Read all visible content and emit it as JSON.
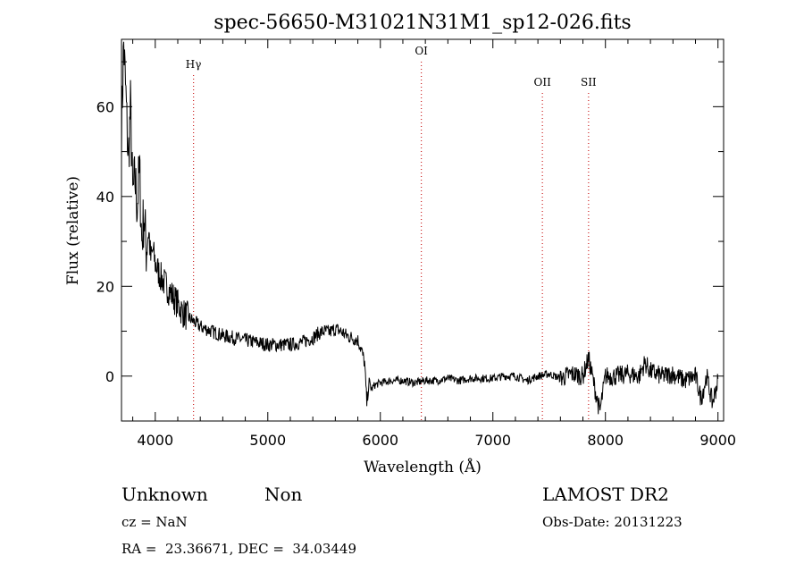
{
  "chart_data": {
    "type": "line",
    "title": "spec-56650-M31021N31M1_sp12-026.fits",
    "xlabel": "Wavelength (Å)",
    "ylabel": "Flux (relative)",
    "xlim": [
      3700,
      9050
    ],
    "ylim": [
      -10,
      75
    ],
    "xticks": [
      4000,
      5000,
      6000,
      7000,
      8000,
      9000
    ],
    "yticks": [
      0,
      20,
      40,
      60
    ],
    "grid": false,
    "series": [
      {
        "x": [
          3700,
          3720,
          3740,
          3760,
          3780,
          3800,
          3820,
          3840,
          3860,
          3880,
          3900,
          3920,
          3940,
          3960,
          3980,
          4000,
          4050,
          4100,
          4150,
          4200,
          4250,
          4300,
          4350,
          4400,
          4450,
          4500,
          4600,
          4700,
          4800,
          4900,
          5000,
          5100,
          5200,
          5300,
          5400,
          5450,
          5500,
          5550,
          5600,
          5650,
          5700,
          5750,
          5800,
          5830,
          5860,
          5880,
          5900,
          5920,
          5950,
          6000,
          6100,
          6200,
          6300,
          6400,
          6500,
          6600,
          6700,
          6800,
          6900,
          7000,
          7100,
          7200,
          7300,
          7400,
          7500,
          7600,
          7700,
          7800,
          7850,
          7900,
          7950,
          8000,
          8100,
          8200,
          8300,
          8350,
          8400,
          8500,
          8600,
          8700,
          8800,
          8850,
          8900,
          8950,
          9000
        ],
        "y": [
          55,
          74,
          62,
          48,
          60,
          40,
          44,
          38,
          46,
          30,
          36,
          28,
          33,
          26,
          28,
          25,
          22,
          20,
          18,
          16,
          14,
          13,
          12,
          11,
          10.5,
          10,
          9,
          8.5,
          8,
          7.5,
          7,
          7,
          7,
          7.5,
          8.5,
          9.5,
          10,
          9.8,
          10.5,
          10,
          9,
          8.5,
          8,
          6,
          3,
          -6,
          -1,
          -3,
          -2,
          -1.5,
          -1,
          -1,
          -1.5,
          -1,
          -1,
          -0.5,
          -1,
          -0.5,
          -0.5,
          -0.5,
          0,
          0,
          -1,
          0,
          0.5,
          -0.5,
          0.5,
          0,
          4,
          -2,
          -8,
          0,
          0,
          0.5,
          0,
          3,
          1,
          0,
          0.5,
          -1,
          0,
          -5,
          0,
          -6,
          -1
        ]
      }
    ],
    "annotations": [
      {
        "label": "Hγ",
        "x": 4340
      },
      {
        "label": "OI",
        "x": 6364
      },
      {
        "label": "OII",
        "x": 7440
      },
      {
        "label": "SII",
        "x": 7850
      }
    ]
  },
  "info": {
    "class_text": "Unknown",
    "subclass_text": "Non",
    "survey_text": "LAMOST DR2",
    "cz_text": "cz = NaN",
    "obs_date_text": "Obs-Date: 20131223",
    "coords_text": "RA =  23.36671, DEC =  34.03449"
  }
}
